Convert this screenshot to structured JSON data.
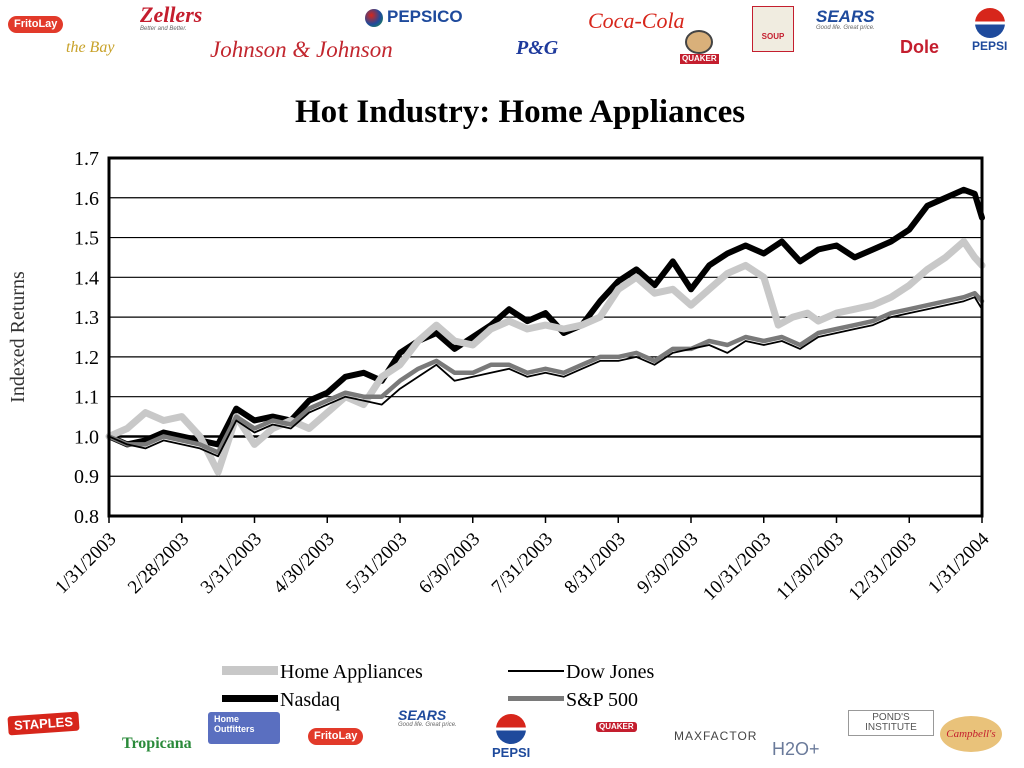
{
  "header_logos": {
    "fritolay": "FritoLay",
    "zellers": "Zellers",
    "zellers_tagline": "Better and Better.",
    "the_bay": "the Bay",
    "johnson": "Johnson & Johnson",
    "pepsico": "PEPSICO",
    "pg": "P&G",
    "cocacola": "Coca-Cola",
    "quaker": "QUAKER",
    "campbells": "SOUP",
    "sears": "SEARS",
    "sears_tagline": "Good life. Great price.",
    "dole": "Dole",
    "pepsi": "PEPSI"
  },
  "footer_logos": {
    "staples": "STAPLES",
    "tropicana": "Tropicana",
    "home_outfitters": "Home Outfitters",
    "fritolay": "FritoLay",
    "sears": "SEARS",
    "sears_tagline": "Good life. Great price.",
    "pepsi": "PEPSI",
    "quaker": "QUAKER",
    "maxfactor": "MAXFACTOR",
    "ponds": "POND'S INSTITUTE",
    "h2o": "H2O+",
    "campbells": "Campbell's"
  },
  "colors": {
    "home_appliances": "#c8c8c8",
    "nasdaq": "#000000",
    "dow_jones": "#000000",
    "sp500": "#7a7a7a",
    "grid": "#000000"
  },
  "chart_data": {
    "type": "line",
    "title": "Hot Industry: Home Appliances",
    "ylabel": "Indexed Returns",
    "xlabel": "",
    "ylim": [
      0.8,
      1.7
    ],
    "yticks": [
      "0.8",
      "0.9",
      "1.0",
      "1.1",
      "1.2",
      "1.3",
      "1.4",
      "1.5",
      "1.6",
      "1.7"
    ],
    "categories": [
      "1/31/2003",
      "2/28/2003",
      "3/31/2003",
      "4/30/2003",
      "5/31/2003",
      "6/30/2003",
      "7/31/2003",
      "8/31/2003",
      "9/30/2003",
      "10/31/2003",
      "11/30/2003",
      "12/31/2003",
      "1/31/2004"
    ],
    "grid": true,
    "legend_position": "bottom",
    "series": [
      {
        "name": "Home Appliances",
        "x": [
          0,
          0.25,
          0.5,
          0.75,
          1,
          1.25,
          1.5,
          1.75,
          2,
          2.25,
          2.5,
          2.75,
          3,
          3.25,
          3.5,
          3.75,
          4,
          4.25,
          4.5,
          4.75,
          5,
          5.25,
          5.5,
          5.75,
          6,
          6.25,
          6.5,
          6.75,
          7,
          7.25,
          7.5,
          7.75,
          8,
          8.25,
          8.5,
          8.75,
          9,
          9.2,
          9.4,
          9.6,
          9.75,
          10,
          10.25,
          10.5,
          10.75,
          11,
          11.25,
          11.5,
          11.75,
          11.9,
          12
        ],
        "y": [
          1.0,
          1.02,
          1.06,
          1.04,
          1.05,
          1.0,
          0.91,
          1.05,
          0.98,
          1.02,
          1.04,
          1.02,
          1.06,
          1.1,
          1.08,
          1.15,
          1.18,
          1.24,
          1.28,
          1.24,
          1.23,
          1.27,
          1.29,
          1.27,
          1.28,
          1.27,
          1.28,
          1.3,
          1.37,
          1.4,
          1.36,
          1.37,
          1.33,
          1.37,
          1.41,
          1.43,
          1.4,
          1.28,
          1.3,
          1.31,
          1.29,
          1.31,
          1.32,
          1.33,
          1.35,
          1.38,
          1.42,
          1.45,
          1.49,
          1.45,
          1.43
        ]
      },
      {
        "name": "Nasdaq",
        "x": [
          0,
          0.25,
          0.5,
          0.75,
          1,
          1.25,
          1.5,
          1.75,
          2,
          2.25,
          2.5,
          2.75,
          3,
          3.25,
          3.5,
          3.75,
          4,
          4.25,
          4.5,
          4.75,
          5,
          5.25,
          5.5,
          5.75,
          6,
          6.25,
          6.5,
          6.75,
          7,
          7.25,
          7.5,
          7.75,
          8,
          8.25,
          8.5,
          8.75,
          9,
          9.25,
          9.5,
          9.75,
          10,
          10.25,
          10.5,
          10.75,
          11,
          11.25,
          11.5,
          11.75,
          11.9,
          12
        ],
        "y": [
          1.0,
          0.98,
          0.99,
          1.01,
          1.0,
          0.99,
          0.98,
          1.07,
          1.04,
          1.05,
          1.04,
          1.09,
          1.11,
          1.15,
          1.16,
          1.14,
          1.21,
          1.24,
          1.26,
          1.22,
          1.25,
          1.28,
          1.32,
          1.29,
          1.31,
          1.26,
          1.28,
          1.34,
          1.39,
          1.42,
          1.38,
          1.44,
          1.37,
          1.43,
          1.46,
          1.48,
          1.46,
          1.49,
          1.44,
          1.47,
          1.48,
          1.45,
          1.47,
          1.49,
          1.52,
          1.58,
          1.6,
          1.62,
          1.61,
          1.55
        ]
      },
      {
        "name": "Dow Jones",
        "x": [
          0,
          0.25,
          0.5,
          0.75,
          1,
          1.25,
          1.5,
          1.75,
          2,
          2.25,
          2.5,
          2.75,
          3,
          3.25,
          3.5,
          3.75,
          4,
          4.25,
          4.5,
          4.75,
          5,
          5.25,
          5.5,
          5.75,
          6,
          6.25,
          6.5,
          6.75,
          7,
          7.25,
          7.5,
          7.75,
          8,
          8.25,
          8.5,
          8.75,
          9,
          9.25,
          9.5,
          9.75,
          10,
          10.25,
          10.5,
          10.75,
          11,
          11.25,
          11.5,
          11.75,
          11.9,
          12
        ],
        "y": [
          1.0,
          0.98,
          0.97,
          0.99,
          0.98,
          0.97,
          0.95,
          1.04,
          1.01,
          1.03,
          1.02,
          1.06,
          1.08,
          1.1,
          1.09,
          1.08,
          1.12,
          1.15,
          1.18,
          1.14,
          1.15,
          1.16,
          1.17,
          1.15,
          1.16,
          1.15,
          1.17,
          1.19,
          1.19,
          1.2,
          1.18,
          1.21,
          1.22,
          1.23,
          1.21,
          1.24,
          1.23,
          1.24,
          1.22,
          1.25,
          1.26,
          1.27,
          1.28,
          1.3,
          1.31,
          1.32,
          1.33,
          1.34,
          1.35,
          1.32
        ]
      },
      {
        "name": "S&P 500",
        "x": [
          0,
          0.25,
          0.5,
          0.75,
          1,
          1.25,
          1.5,
          1.75,
          2,
          2.25,
          2.5,
          2.75,
          3,
          3.25,
          3.5,
          3.75,
          4,
          4.25,
          4.5,
          4.75,
          5,
          5.25,
          5.5,
          5.75,
          6,
          6.25,
          6.5,
          6.75,
          7,
          7.25,
          7.5,
          7.75,
          8,
          8.25,
          8.5,
          8.75,
          9,
          9.25,
          9.5,
          9.75,
          10,
          10.25,
          10.5,
          10.75,
          11,
          11.25,
          11.5,
          11.75,
          11.9,
          12
        ],
        "y": [
          1.0,
          0.98,
          0.98,
          1.0,
          0.99,
          0.98,
          0.96,
          1.05,
          1.02,
          1.04,
          1.03,
          1.07,
          1.09,
          1.11,
          1.1,
          1.1,
          1.14,
          1.17,
          1.19,
          1.16,
          1.16,
          1.18,
          1.18,
          1.16,
          1.17,
          1.16,
          1.18,
          1.2,
          1.2,
          1.21,
          1.19,
          1.22,
          1.22,
          1.24,
          1.23,
          1.25,
          1.24,
          1.25,
          1.23,
          1.26,
          1.27,
          1.28,
          1.29,
          1.31,
          1.32,
          1.33,
          1.34,
          1.35,
          1.36,
          1.34
        ]
      }
    ]
  }
}
